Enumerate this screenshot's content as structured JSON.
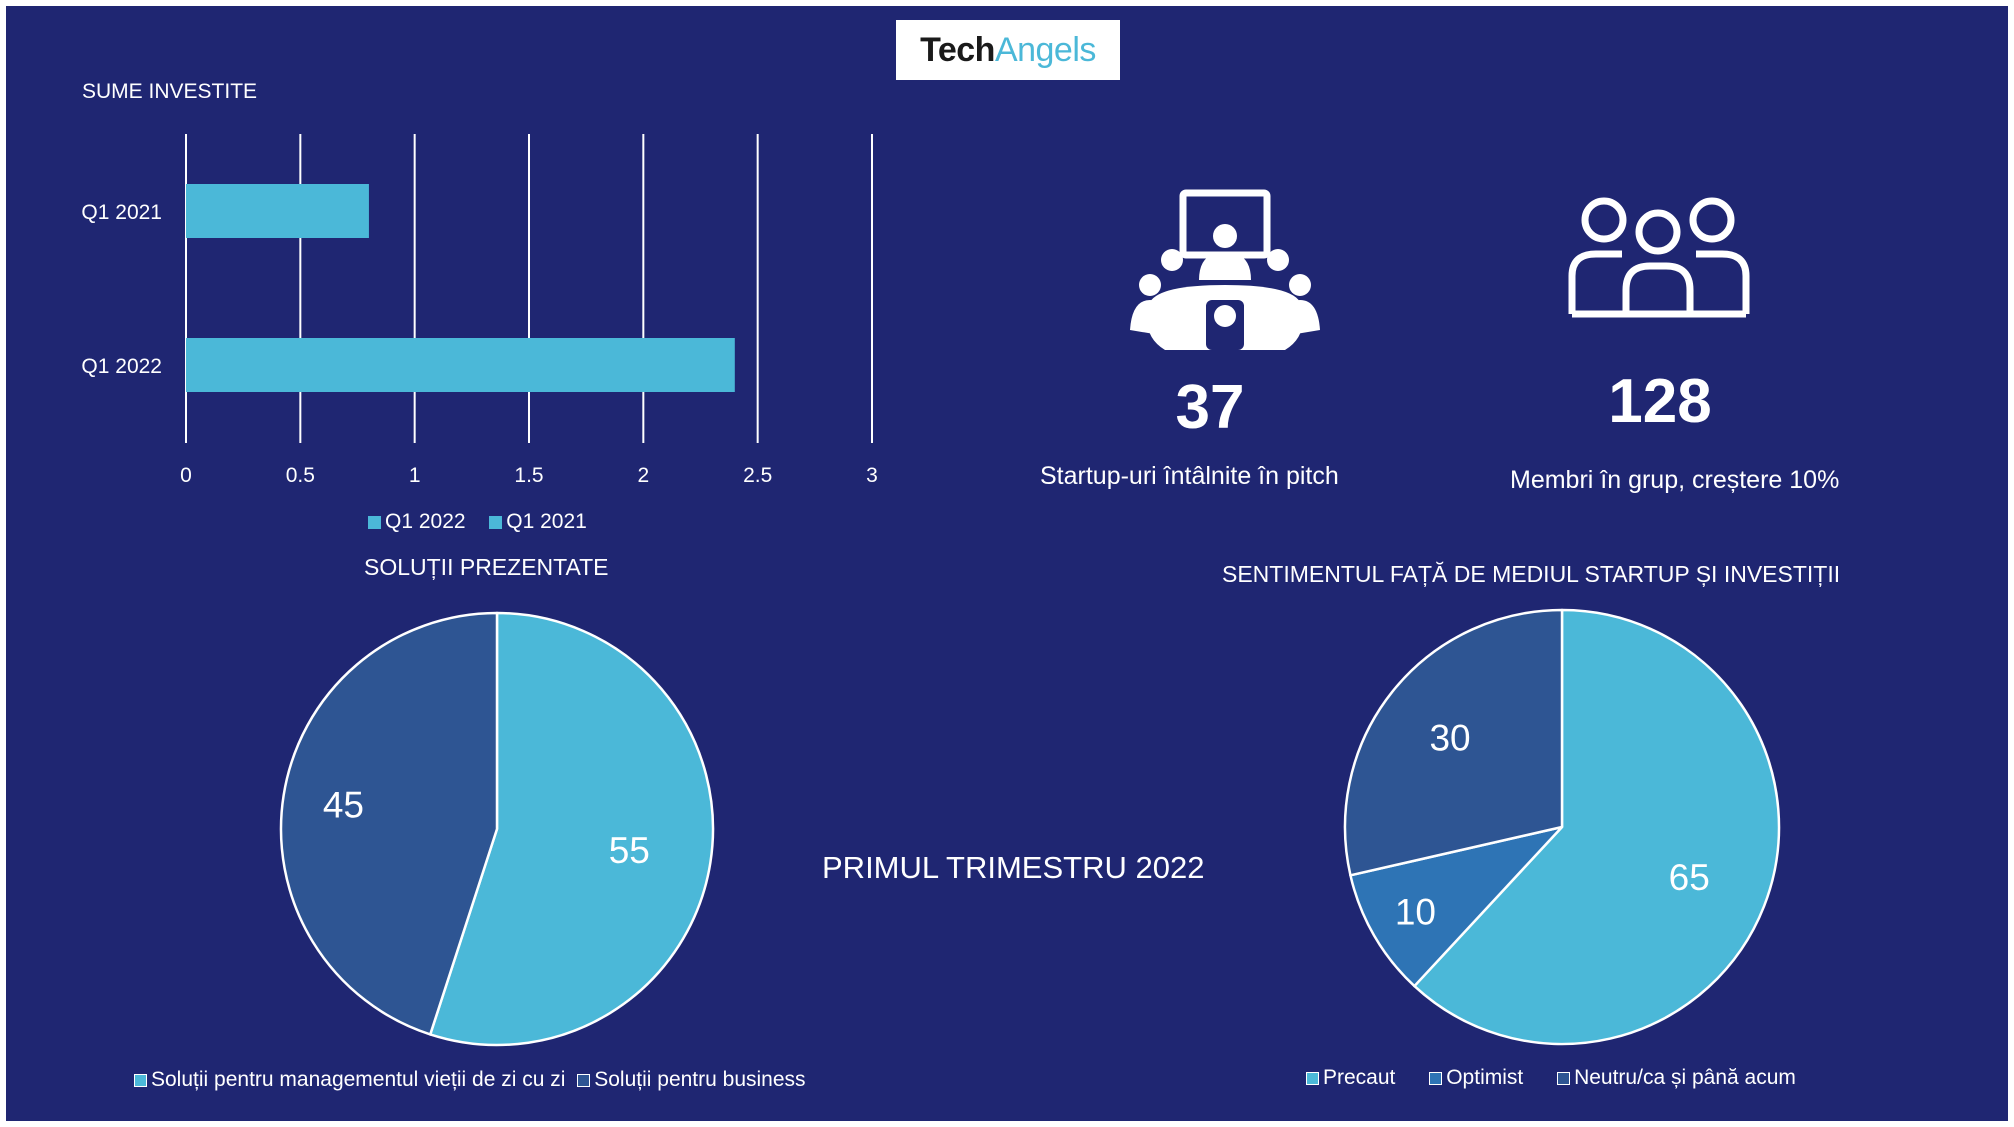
{
  "logo": {
    "part1": "Tech",
    "part2": "Angels"
  },
  "center_label": "PRIMUL TRIMESTRU 2022",
  "stats": [
    {
      "icon": "meeting-icon",
      "value": "37",
      "label": "Startup-uri întâlnite în pitch"
    },
    {
      "icon": "group-icon",
      "value": "128",
      "label": "Membri în grup, creștere 10%"
    }
  ],
  "colors": {
    "background": "#1f2672",
    "light": "#4bb8d8",
    "dark": "#2e5593",
    "mid": "#2e74b5"
  },
  "chart_data": [
    {
      "type": "bar",
      "orientation": "horizontal",
      "title": "SUME INVESTITE",
      "categories": [
        "Q1 2021",
        "Q1 2022"
      ],
      "series": [
        {
          "name": "Q1 2022",
          "values": [
            null,
            2.4
          ]
        },
        {
          "name": "Q1 2021",
          "values": [
            0.8,
            null
          ]
        }
      ],
      "xlim": [
        0,
        3
      ],
      "xticks": [
        "0",
        "0.5",
        "1",
        "1.5",
        "2",
        "2.5",
        "3"
      ],
      "grid": true,
      "legend": [
        "Q1 2022",
        "Q1 2021"
      ],
      "legend_position": "bottom"
    },
    {
      "type": "pie",
      "title": "SOLUȚII PREZENTATE",
      "slices": [
        {
          "label": "Soluții pentru managementul vieții de zi cu zi",
          "value": 55,
          "data_label": "55"
        },
        {
          "label": "Soluții pentru business",
          "value": 45,
          "data_label": "45"
        }
      ],
      "legend_position": "bottom"
    },
    {
      "type": "pie",
      "title": "SENTIMENTUL FAȚĂ DE MEDIUL STARTUP ȘI  INVESTIȚII",
      "slices": [
        {
          "label": "Precaut",
          "value": 65,
          "data_label": "65"
        },
        {
          "label": "Optimist",
          "value": 10,
          "data_label": "10"
        },
        {
          "label": "Neutru/ca și până acum",
          "value": 30,
          "data_label": "30"
        }
      ],
      "legend_position": "bottom"
    }
  ]
}
